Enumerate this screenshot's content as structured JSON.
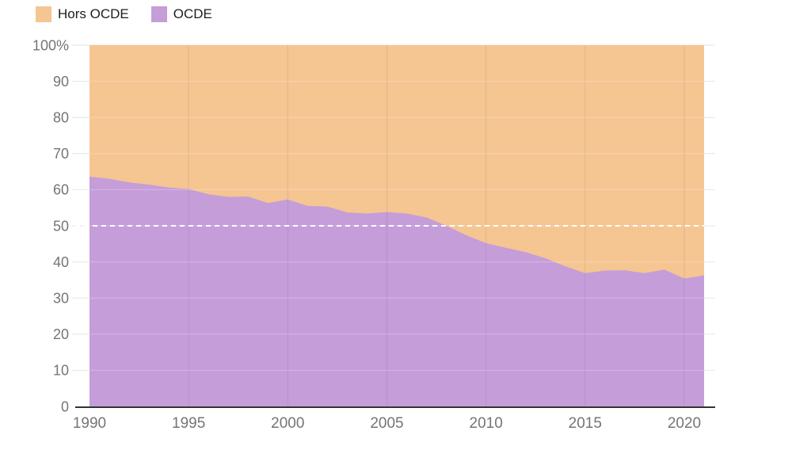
{
  "legend": {
    "items": [
      {
        "label": "Hors OCDE",
        "color": "#f5c592"
      },
      {
        "label": "OCDE",
        "color": "#c49dd9"
      }
    ]
  },
  "chart_data": {
    "type": "area",
    "stacked_percent": true,
    "title": "",
    "xlabel": "",
    "ylabel": "",
    "x": [
      1990,
      1991,
      1992,
      1993,
      1994,
      1995,
      1996,
      1997,
      1998,
      1999,
      2000,
      2001,
      2002,
      2003,
      2004,
      2005,
      2006,
      2007,
      2008,
      2009,
      2010,
      2011,
      2012,
      2013,
      2014,
      2015,
      2016,
      2017,
      2018,
      2019,
      2020,
      2021
    ],
    "series": [
      {
        "name": "OCDE",
        "color": "#c49dd9",
        "values": [
          63.6,
          63.0,
          62.0,
          61.4,
          60.6,
          60.2,
          58.7,
          58.0,
          58.1,
          56.3,
          57.3,
          55.5,
          55.3,
          53.7,
          53.4,
          53.8,
          53.4,
          52.3,
          50.0,
          47.4,
          45.2,
          43.9,
          42.7,
          41.0,
          38.8,
          36.9,
          37.6,
          37.7,
          36.9,
          37.9,
          35.4,
          36.3
        ]
      },
      {
        "name": "Hors OCDE",
        "color": "#f5c592",
        "values": [
          36.4,
          37.0,
          38.0,
          38.6,
          39.4,
          39.8,
          41.3,
          42.0,
          41.9,
          43.7,
          42.7,
          44.5,
          44.7,
          46.3,
          46.6,
          46.2,
          46.6,
          47.7,
          50.0,
          52.6,
          54.8,
          56.1,
          57.3,
          59.0,
          61.2,
          63.1,
          62.4,
          62.3,
          63.1,
          62.1,
          64.6,
          63.7
        ]
      }
    ],
    "xlim": [
      1990,
      2021
    ],
    "ylim": [
      0,
      100
    ],
    "y_ticks": [
      0,
      10,
      20,
      30,
      40,
      50,
      60,
      70,
      80,
      90,
      100
    ],
    "y_tick_labels": [
      "0",
      "10",
      "20",
      "30",
      "40",
      "50",
      "60",
      "70",
      "80",
      "90",
      "100%"
    ],
    "x_ticks": [
      1990,
      1995,
      2000,
      2005,
      2010,
      2015,
      2020
    ],
    "x_tick_labels": [
      "1990",
      "1995",
      "2000",
      "2005",
      "2010",
      "2015",
      "2020"
    ],
    "reference_line": {
      "value": 50,
      "style": "dashed",
      "color": "#ffffff"
    },
    "grid": true,
    "legend_position": "top-left"
  },
  "colors": {
    "background": "#ffffff",
    "gridline": "#e6e6e6",
    "axis_line": "#333333",
    "tick_label": "#757575",
    "legend_text": "#1d1d1d"
  }
}
